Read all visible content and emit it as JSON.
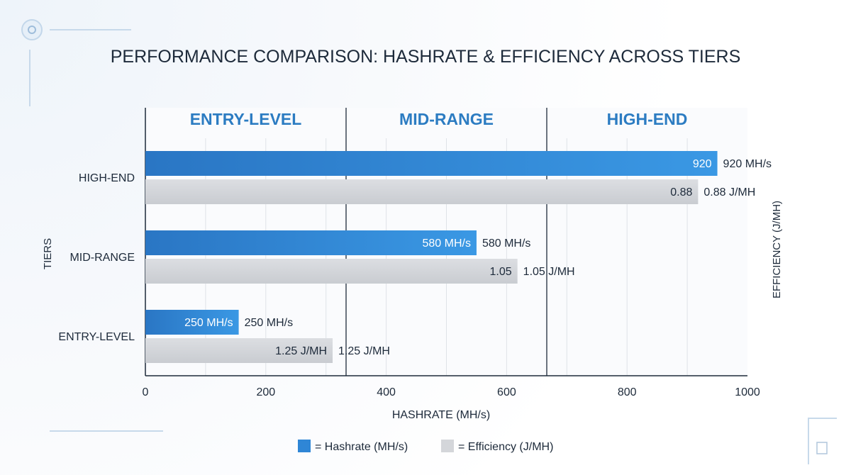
{
  "chart_data": {
    "type": "bar",
    "title": "PERFORMANCE COMPARISON: HASHRATE & EFFICIENCY ACROSS TIERS",
    "xlabel": "HASHRATE (MH/s)",
    "ylabel": "TIERS",
    "y2label": "EFFICIENCY (J/MH)",
    "xlim": [
      0,
      1000
    ],
    "x_ticks": [
      0,
      200,
      400,
      600,
      800,
      1000
    ],
    "grid": true,
    "legend_position": "bottom",
    "tier_headers": [
      "ENTRY-LEVEL",
      "MID-RANGE",
      "HIGH-END"
    ],
    "categories": [
      "HIGH-END",
      "MID-RANGE",
      "ENTRY-LEVEL"
    ],
    "series": [
      {
        "name": "Hashrate (MH/s)",
        "values": [
          920,
          580,
          250
        ],
        "bar_lengths": [
          950,
          550,
          155
        ],
        "inside_labels": [
          "920",
          "580 MH/s",
          "250 MH/s"
        ],
        "outside_labels": [
          "920 MH/s",
          "580 MH/s",
          "250 MH/s"
        ],
        "color": "#2f86d6"
      },
      {
        "name": "Efficiency (J/MH)",
        "values": [
          0.88,
          1.05,
          1.25
        ],
        "bar_lengths": [
          918,
          618,
          311
        ],
        "inside_labels": [
          "0.88",
          "1.05",
          "1.25 J/MH"
        ],
        "outside_labels": [
          "0.88 J/MH",
          "1.05 J/MH",
          "1.25 J/MH"
        ],
        "color": "#d4d6da"
      }
    ],
    "legend": [
      {
        "marker": "■",
        "label": "= Hashrate (MH/s)",
        "color": "#2f86d6"
      },
      {
        "marker": "■",
        "label": "= Efficiency (J/MH)",
        "color": "#d4d6da"
      }
    ]
  }
}
